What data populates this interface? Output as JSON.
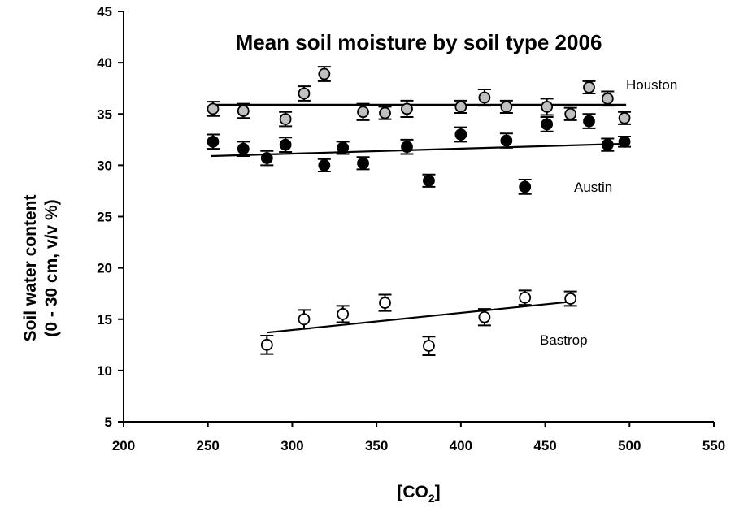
{
  "chart_data": {
    "type": "scatter",
    "title": "Mean soil moisture by soil type 2006",
    "ylabel_line1": "Soil water content",
    "ylabel_line2": "(0 - 30 cm, v/v %)",
    "xlabel_prefix": "[CO",
    "xlabel_sub": "2",
    "xlabel_suffix": "]",
    "xlim": [
      200,
      550
    ],
    "ylim": [
      5,
      45
    ],
    "xticks": [
      200,
      250,
      300,
      350,
      400,
      450,
      500,
      550
    ],
    "yticks": [
      5,
      10,
      15,
      20,
      25,
      30,
      35,
      40,
      45
    ],
    "grid": false,
    "series": [
      {
        "name": "Houston",
        "marker_fill": "#c0c0c0",
        "points": [
          {
            "x": 253,
            "y": 35.5,
            "err": 0.7
          },
          {
            "x": 271,
            "y": 35.3,
            "err": 0.7
          },
          {
            "x": 296,
            "y": 34.5,
            "err": 0.7
          },
          {
            "x": 307,
            "y": 37.0,
            "err": 0.7
          },
          {
            "x": 319,
            "y": 38.9,
            "err": 0.7
          },
          {
            "x": 342,
            "y": 35.2,
            "err": 0.8
          },
          {
            "x": 355,
            "y": 35.1,
            "err": 0.6
          },
          {
            "x": 368,
            "y": 35.5,
            "err": 0.8
          },
          {
            "x": 400,
            "y": 35.7,
            "err": 0.6
          },
          {
            "x": 414,
            "y": 36.6,
            "err": 0.8
          },
          {
            "x": 427,
            "y": 35.7,
            "err": 0.6
          },
          {
            "x": 451,
            "y": 35.7,
            "err": 0.8
          },
          {
            "x": 465,
            "y": 35.0,
            "err": 0.6
          },
          {
            "x": 476,
            "y": 37.6,
            "err": 0.6
          },
          {
            "x": 487,
            "y": 36.5,
            "err": 0.7
          },
          {
            "x": 497,
            "y": 34.6,
            "err": 0.6
          }
        ],
        "fit": {
          "x": [
            252,
            498
          ],
          "y": [
            35.9,
            35.9
          ]
        }
      },
      {
        "name": "Austin",
        "marker_fill": "#000000",
        "points": [
          {
            "x": 253,
            "y": 32.3,
            "err": 0.7
          },
          {
            "x": 271,
            "y": 31.6,
            "err": 0.7
          },
          {
            "x": 285,
            "y": 30.7,
            "err": 0.7
          },
          {
            "x": 296,
            "y": 32.0,
            "err": 0.7
          },
          {
            "x": 319,
            "y": 30.0,
            "err": 0.6
          },
          {
            "x": 330,
            "y": 31.7,
            "err": 0.6
          },
          {
            "x": 342,
            "y": 30.2,
            "err": 0.6
          },
          {
            "x": 368,
            "y": 31.8,
            "err": 0.7
          },
          {
            "x": 381,
            "y": 28.5,
            "err": 0.6
          },
          {
            "x": 400,
            "y": 33.0,
            "err": 0.7
          },
          {
            "x": 427,
            "y": 32.4,
            "err": 0.7
          },
          {
            "x": 438,
            "y": 27.9,
            "err": 0.7
          },
          {
            "x": 451,
            "y": 34.0,
            "err": 0.7
          },
          {
            "x": 476,
            "y": 34.3,
            "err": 0.7
          },
          {
            "x": 487,
            "y": 32.0,
            "err": 0.6
          },
          {
            "x": 497,
            "y": 32.3,
            "err": 0.5
          }
        ],
        "fit": {
          "x": [
            252,
            498
          ],
          "y": [
            30.9,
            32.1
          ]
        }
      },
      {
        "name": "Bastrop",
        "marker_fill": "#ffffff",
        "points": [
          {
            "x": 285,
            "y": 12.5,
            "err": 0.9
          },
          {
            "x": 307,
            "y": 15.0,
            "err": 0.9
          },
          {
            "x": 330,
            "y": 15.5,
            "err": 0.8
          },
          {
            "x": 355,
            "y": 16.6,
            "err": 0.8
          },
          {
            "x": 381,
            "y": 12.4,
            "err": 0.9
          },
          {
            "x": 414,
            "y": 15.2,
            "err": 0.8
          },
          {
            "x": 438,
            "y": 17.1,
            "err": 0.7
          },
          {
            "x": 465,
            "y": 17.0,
            "err": 0.7
          }
        ],
        "fit": {
          "x": [
            285,
            465
          ],
          "y": [
            13.7,
            16.7
          ]
        }
      }
    ],
    "series_labels": [
      "Houston",
      "Austin",
      "Bastrop"
    ]
  }
}
